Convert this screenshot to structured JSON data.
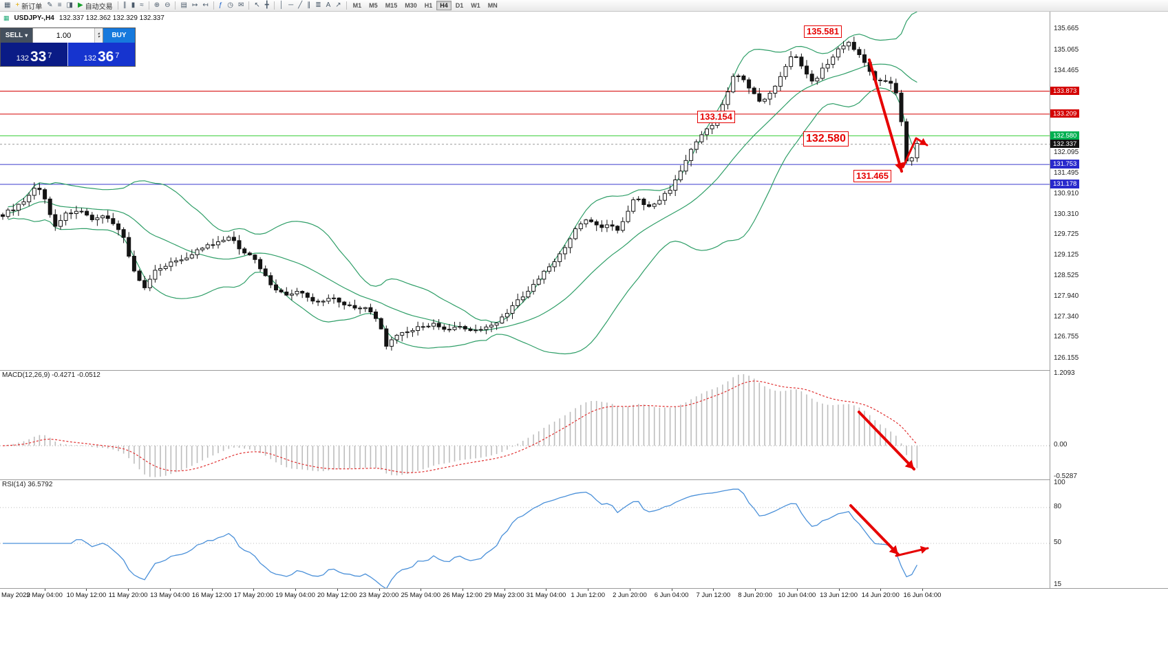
{
  "colors": {
    "candle_up": "#ffffff",
    "candle_down": "#141414",
    "candle_outline": "#141414",
    "bollinger": "#2e9e67",
    "annotation_red": "#e60000",
    "macd_hist": "#bdbdbd",
    "macd_signal": "#e03030",
    "rsi_line": "#4a90d9",
    "badge_black": "#141414",
    "sell_btn": "#44505e",
    "buy_btn": "#1679dd",
    "sell_price_bg": "#0a1b86",
    "buy_price_bg": "#1634cf"
  },
  "toolbar": {
    "buttons": [
      {
        "name": "new-chart",
        "glyph": "▦"
      },
      {
        "name": "new-order",
        "glyph": "+",
        "label": "新订单",
        "glyph_color": "#e0a800"
      },
      {
        "name": "metaeditor",
        "glyph": "✎"
      },
      {
        "name": "market-watch",
        "glyph": "≡"
      },
      {
        "name": "navigator",
        "glyph": "◨"
      },
      {
        "name": "autotrading",
        "glyph": "▶",
        "label": "自动交易",
        "glyph_color": "#18a02c"
      },
      {
        "sep": true
      },
      {
        "name": "bar-chart-mode",
        "glyph": "∥"
      },
      {
        "name": "candlestick-mode",
        "glyph": "▮"
      },
      {
        "name": "line-chart-mode",
        "glyph": "≈"
      },
      {
        "sep": true
      },
      {
        "name": "zoom-in",
        "glyph": "⊕"
      },
      {
        "name": "zoom-out",
        "glyph": "⊖"
      },
      {
        "sep": true
      },
      {
        "name": "tile-windows",
        "glyph": "▤"
      },
      {
        "name": "auto-scroll",
        "glyph": "↦"
      },
      {
        "name": "chart-shift",
        "glyph": "↤"
      },
      {
        "sep": true
      },
      {
        "name": "indicators",
        "glyph": "ƒ",
        "glyph_color": "#2266cc"
      },
      {
        "name": "period-selector",
        "glyph": "◷"
      },
      {
        "name": "new-email",
        "glyph": "✉"
      },
      {
        "sep": true
      },
      {
        "name": "cursor",
        "glyph": "↖"
      },
      {
        "name": "crosshair",
        "glyph": "╋"
      },
      {
        "sep": true
      },
      {
        "name": "vertical-line-tool",
        "glyph": "│"
      },
      {
        "name": "horizontal-line-tool",
        "glyph": "─"
      },
      {
        "name": "trendline-tool",
        "glyph": "╱"
      },
      {
        "name": "channel-tool",
        "glyph": "∥"
      },
      {
        "name": "fibonacci-tool",
        "glyph": "≣"
      },
      {
        "name": "text-tool",
        "glyph": "A"
      },
      {
        "name": "arrows-tool",
        "glyph": "↗"
      },
      {
        "sep": true
      }
    ],
    "timeframes": [
      "M1",
      "M5",
      "M15",
      "M30",
      "H1",
      "H4",
      "D1",
      "W1",
      "MN"
    ],
    "active_timeframe": "H4"
  },
  "icons": {
    "dropdown": "▾",
    "spin_up": "▴",
    "spin_down": "▾",
    "symbol_chart": "▦"
  },
  "quote_panel": {
    "sell_label": "SELL",
    "buy_label": "BUY",
    "volume": "1.00",
    "sell_prefix": "132",
    "sell_big": "33",
    "sell_sup": "7",
    "buy_prefix": "132",
    "buy_big": "36",
    "buy_sup": "7"
  },
  "chart_data": {
    "type": "candlestick",
    "symbol_title": "USDJPY-,H4",
    "ohlc": "132.337 132.362 132.329 132.337",
    "y_range": [
      125.81,
      136.17
    ],
    "candle_count": 175,
    "bollinger": {
      "period": 20,
      "deviation": 2
    },
    "price_anchors": [
      [
        0.0,
        130.3
      ],
      [
        0.026,
        130.7
      ],
      [
        0.038,
        131.2
      ],
      [
        0.049,
        130.55
      ],
      [
        0.056,
        129.95
      ],
      [
        0.068,
        130.3
      ],
      [
        0.083,
        130.45
      ],
      [
        0.098,
        130.1
      ],
      [
        0.113,
        130.3
      ],
      [
        0.124,
        129.95
      ],
      [
        0.132,
        129.65
      ],
      [
        0.143,
        128.7
      ],
      [
        0.155,
        128.15
      ],
      [
        0.169,
        128.75
      ],
      [
        0.188,
        128.95
      ],
      [
        0.203,
        129.1
      ],
      [
        0.218,
        129.35
      ],
      [
        0.233,
        129.45
      ],
      [
        0.248,
        129.65
      ],
      [
        0.26,
        129.3
      ],
      [
        0.271,
        129.15
      ],
      [
        0.282,
        128.75
      ],
      [
        0.293,
        128.3
      ],
      [
        0.308,
        127.95
      ],
      [
        0.323,
        128.1
      ],
      [
        0.335,
        127.85
      ],
      [
        0.346,
        127.75
      ],
      [
        0.361,
        127.95
      ],
      [
        0.372,
        127.7
      ],
      [
        0.384,
        127.65
      ],
      [
        0.398,
        127.6
      ],
      [
        0.406,
        127.35
      ],
      [
        0.413,
        127.05
      ],
      [
        0.42,
        126.5
      ],
      [
        0.429,
        126.75
      ],
      [
        0.441,
        126.9
      ],
      [
        0.451,
        127.0
      ],
      [
        0.462,
        127.1
      ],
      [
        0.47,
        127.15
      ],
      [
        0.481,
        126.95
      ],
      [
        0.492,
        127.0
      ],
      [
        0.504,
        127.05
      ],
      [
        0.515,
        126.95
      ],
      [
        0.526,
        127.0
      ],
      [
        0.538,
        127.15
      ],
      [
        0.549,
        127.4
      ],
      [
        0.56,
        127.75
      ],
      [
        0.571,
        127.95
      ],
      [
        0.583,
        128.35
      ],
      [
        0.594,
        128.7
      ],
      [
        0.605,
        129.0
      ],
      [
        0.617,
        129.4
      ],
      [
        0.626,
        129.9
      ],
      [
        0.635,
        130.1
      ],
      [
        0.644,
        130.15
      ],
      [
        0.652,
        129.9
      ],
      [
        0.662,
        130.05
      ],
      [
        0.672,
        129.8
      ],
      [
        0.683,
        130.3
      ],
      [
        0.69,
        130.8
      ],
      [
        0.699,
        130.65
      ],
      [
        0.708,
        130.5
      ],
      [
        0.718,
        130.75
      ],
      [
        0.728,
        130.95
      ],
      [
        0.737,
        131.4
      ],
      [
        0.747,
        131.85
      ],
      [
        0.756,
        132.3
      ],
      [
        0.766,
        132.65
      ],
      [
        0.775,
        132.85
      ],
      [
        0.783,
        133.15
      ],
      [
        0.791,
        133.75
      ],
      [
        0.799,
        134.3
      ],
      [
        0.806,
        134.35
      ],
      [
        0.813,
        134.05
      ],
      [
        0.822,
        133.75
      ],
      [
        0.831,
        133.55
      ],
      [
        0.84,
        133.8
      ],
      [
        0.848,
        134.2
      ],
      [
        0.856,
        134.6
      ],
      [
        0.864,
        134.95
      ],
      [
        0.872,
        134.7
      ],
      [
        0.879,
        134.4
      ],
      [
        0.887,
        134.15
      ],
      [
        0.895,
        134.45
      ],
      [
        0.903,
        134.7
      ],
      [
        0.91,
        134.95
      ],
      [
        0.918,
        135.2
      ],
      [
        0.925,
        135.3
      ],
      [
        0.932,
        135.05
      ],
      [
        0.94,
        134.8
      ],
      [
        0.948,
        134.5
      ],
      [
        0.955,
        134.2
      ],
      [
        0.963,
        134.1
      ],
      [
        0.97,
        134.2
      ],
      [
        0.977,
        133.85
      ],
      [
        0.982,
        133.2
      ],
      [
        0.986,
        132.3
      ],
      [
        0.99,
        131.6
      ],
      [
        0.994,
        131.9
      ],
      [
        0.997,
        132.15
      ],
      [
        1.0,
        132.34
      ]
    ],
    "scale_labels": [
      "135.665",
      "135.065",
      "134.465",
      "132.095",
      "131.495",
      "130.910",
      "130.310",
      "129.725",
      "129.125",
      "128.525",
      "127.940",
      "127.340",
      "126.755",
      "126.155"
    ],
    "hlines": [
      {
        "price": 133.873,
        "label": "133.873",
        "line": "#d40000",
        "badge": "#d40000"
      },
      {
        "price": 133.209,
        "label": "133.209",
        "line": "#d40000",
        "badge": "#d40000"
      },
      {
        "price": 132.58,
        "label": "132.580",
        "line": "#3ecf3e",
        "badge": "#00b050"
      },
      {
        "price": 131.753,
        "label": "131.753",
        "line": "#3a3acc",
        "badge": "#2929cc"
      },
      {
        "price": 131.178,
        "label": "131.178",
        "line": "#3a3acc",
        "badge": "#2929cc"
      }
    ],
    "current_price": {
      "value": 132.337,
      "label": "132.337"
    },
    "annotations": {
      "boxes": [
        {
          "text": "135.581",
          "x": 1168,
          "y": 20,
          "size": 13
        },
        {
          "text": "133.154",
          "x": 1013,
          "y": 144,
          "size": 13
        },
        {
          "text": "132.580",
          "x": 1167,
          "y": 174,
          "size": 16
        },
        {
          "text": "131.465",
          "x": 1240,
          "y": 230,
          "size": 13
        }
      ],
      "arrows_main": [
        {
          "points": [
            [
              1263,
              70
            ],
            [
              1310,
              232
            ]
          ],
          "width": 4
        },
        {
          "points": [
            [
              1312,
              226
            ],
            [
              1331,
              184
            ],
            [
              1347,
              194
            ]
          ],
          "width": 3
        }
      ],
      "arrows_macd": [
        {
          "points": [
            [
              1248,
              60
            ],
            [
              1328,
              143
            ]
          ],
          "width": 4
        }
      ],
      "arrows_rsi": [
        {
          "points": [
            [
              1236,
              37
            ],
            [
              1305,
              108
            ]
          ],
          "width": 4
        },
        {
          "points": [
            [
              1302,
              110
            ],
            [
              1348,
              99
            ]
          ],
          "width": 3
        }
      ]
    },
    "macd": {
      "label": "MACD(12,26,9) -0.4271 -0.0512",
      "fast": 12,
      "slow": 26,
      "signal": 9,
      "peak": 1.2093,
      "range": [
        -0.581,
        1.267
      ],
      "scale_labels": [
        {
          "text": "1.2093",
          "value": 1.2093
        },
        {
          "text": "0.00",
          "value": 0
        },
        {
          "text": "-0.5287",
          "value": -0.5287
        }
      ]
    },
    "rsi": {
      "label": "RSI(14) 36.5792",
      "period": 14,
      "range": [
        12,
        103
      ],
      "levels": [
        80,
        50
      ],
      "scale_labels": [
        {
          "text": "100",
          "value": 100
        },
        {
          "text": "80",
          "value": 80
        },
        {
          "text": "50",
          "value": 50
        },
        {
          "text": "15",
          "value": 15
        }
      ]
    },
    "time_labels": [
      "May 2022",
      "9 May 04:00",
      "10 May 12:00",
      "11 May 20:00",
      "13 May 04:00",
      "16 May 12:00",
      "17 May 20:00",
      "19 May 04:00",
      "20 May 12:00",
      "23 May 20:00",
      "25 May 04:00",
      "26 May 12:00",
      "29 May 23:00",
      "31 May 04:00",
      "1 Jun 12:00",
      "2 Jun 20:00",
      "6 Jun 04:00",
      "7 Jun 12:00",
      "8 Jun 20:00",
      "10 Jun 04:00",
      "13 Jun 12:00",
      "14 Jun 20:00",
      "16 Jun 04:00"
    ]
  }
}
